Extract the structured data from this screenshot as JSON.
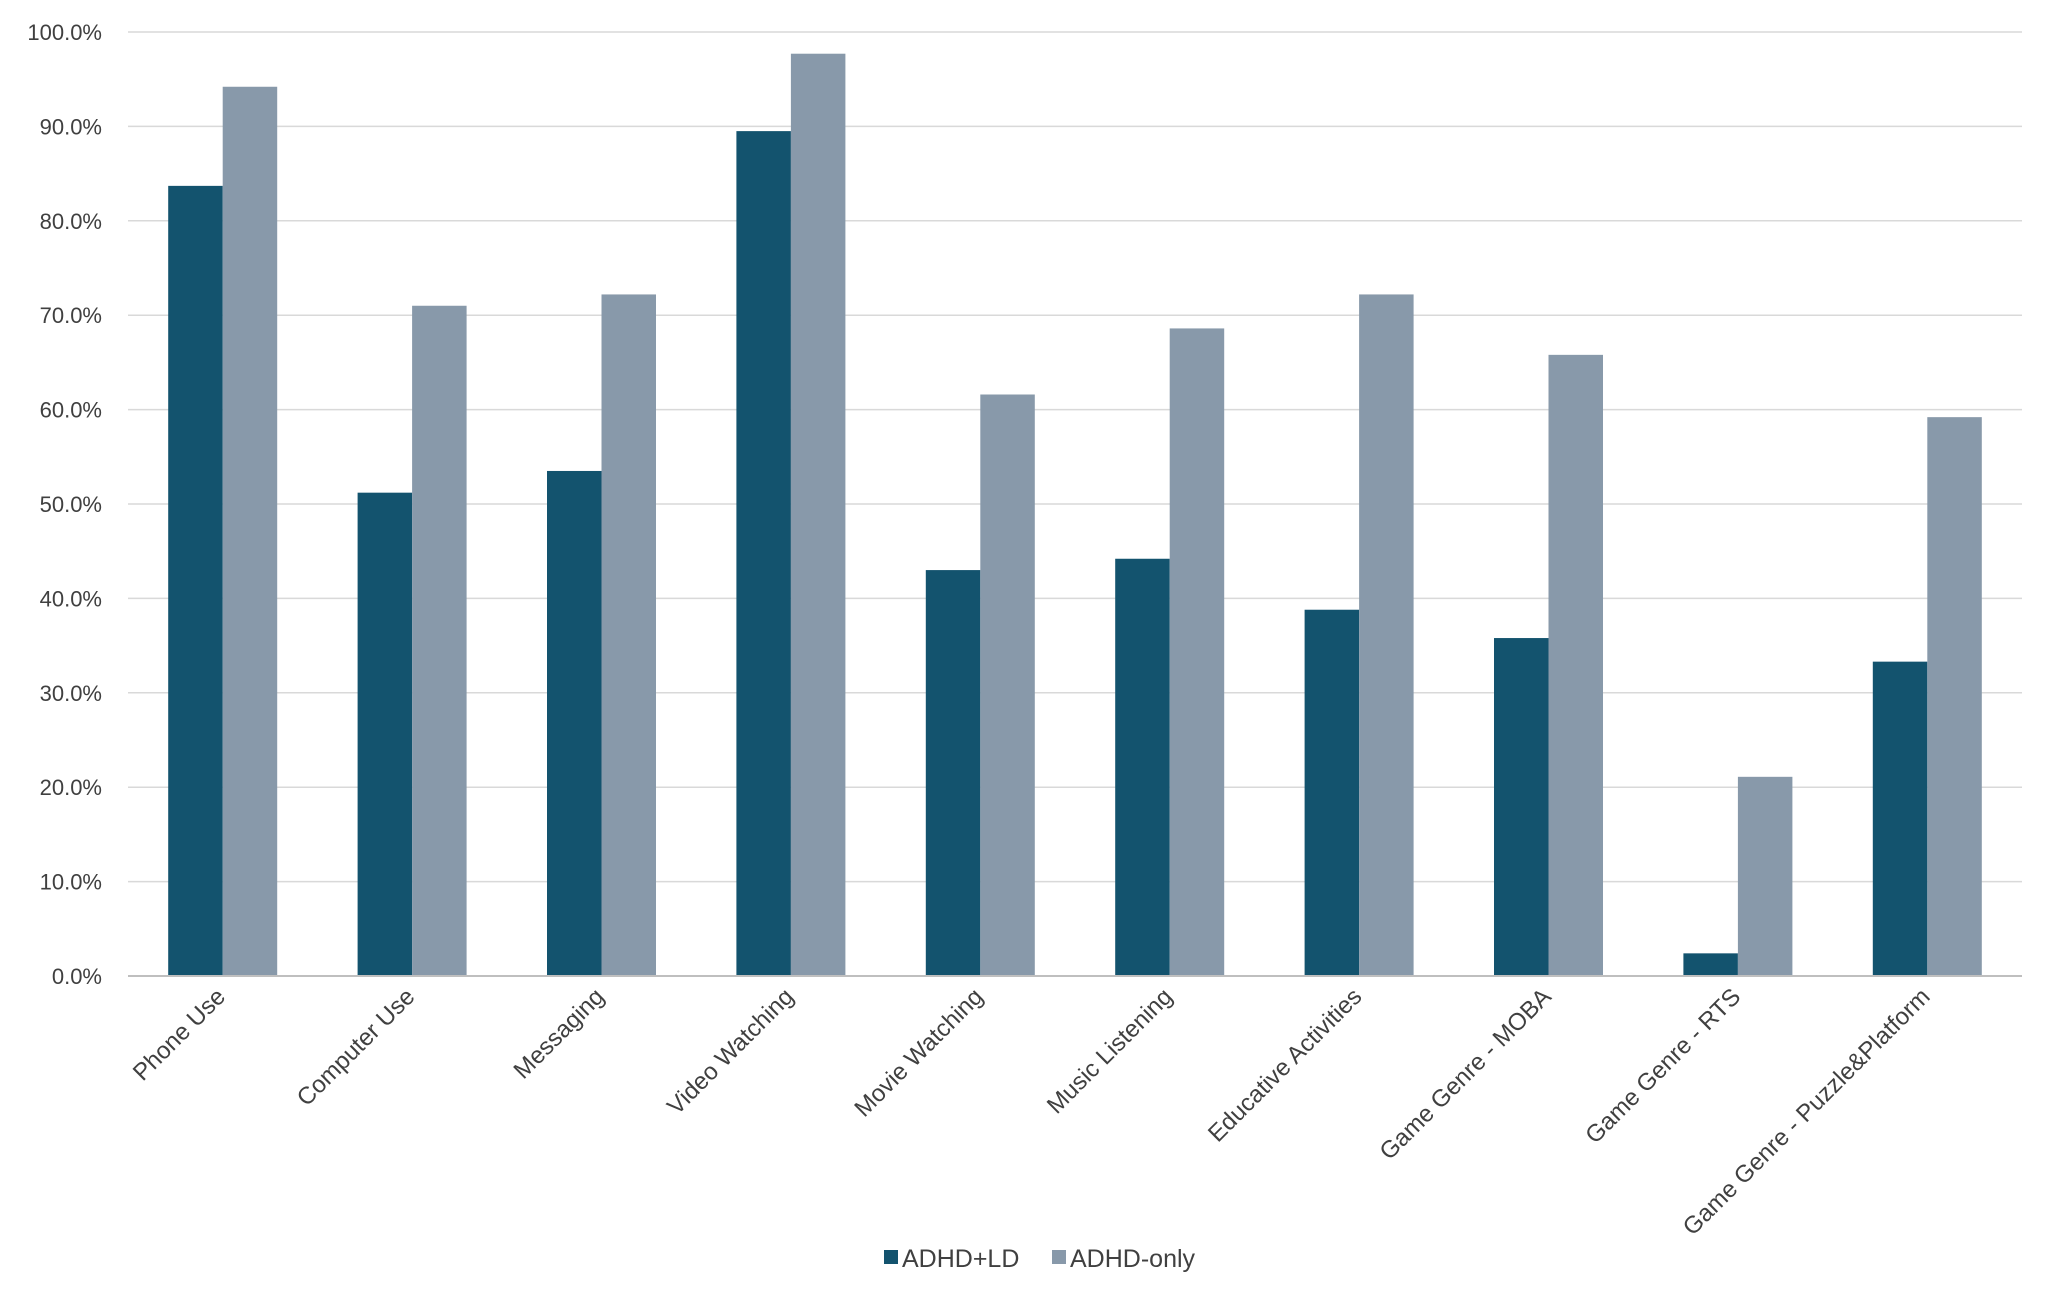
{
  "chart_data": {
    "type": "bar",
    "title": "",
    "xlabel": "",
    "ylabel": "",
    "ylim": [
      0,
      100
    ],
    "y_ticks": [
      "0.0%",
      "10.0%",
      "20.0%",
      "30.0%",
      "40.0%",
      "50.0%",
      "60.0%",
      "70.0%",
      "80.0%",
      "90.0%",
      "100.0%"
    ],
    "grid": "horizontal",
    "legend_position": "bottom",
    "categories": [
      "Phone Use",
      "Computer Use",
      "Messaging",
      "Video Watching",
      "Movie Watching",
      "Music Listening",
      "Educative Activities",
      "Game Genre - MOBA",
      "Game Genre - RTS",
      "Game Genre - Puzzle&Platform"
    ],
    "series": [
      {
        "name": "ADHD+LD",
        "color": "#13536e",
        "values": [
          83.7,
          51.2,
          53.5,
          89.5,
          43.0,
          44.2,
          38.8,
          35.8,
          2.4,
          33.3
        ]
      },
      {
        "name": "ADHD-only",
        "color": "#8899aa",
        "values": [
          94.2,
          71.0,
          72.2,
          97.7,
          61.6,
          68.6,
          72.2,
          65.8,
          21.1,
          59.2
        ]
      }
    ]
  }
}
